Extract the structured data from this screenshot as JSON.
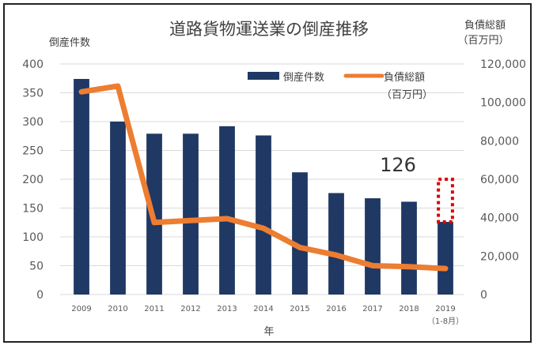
{
  "chart_data": {
    "type": "bar",
    "title": "道路貨物運送業の倒産推移",
    "xlabel": "年",
    "ylabel_left": "倒産件数",
    "ylabel_right": [
      "負債総額",
      "（百万円）"
    ],
    "categories": [
      "2009",
      "2010",
      "2011",
      "2012",
      "2013",
      "2014",
      "2015",
      "2016",
      "2017",
      "2018",
      "2019"
    ],
    "category_sublabels": [
      "",
      "",
      "",
      "",
      "",
      "",
      "",
      "",
      "",
      "",
      "（1-8月）"
    ],
    "ylim_left": [
      0,
      400
    ],
    "yticks_left": [
      "0",
      "50",
      "100",
      "150",
      "200",
      "250",
      "300",
      "350",
      "400"
    ],
    "ylim_right": [
      0,
      120000
    ],
    "yticks_right": [
      "0",
      "20,000",
      "40,000",
      "60,000",
      "80,000",
      "100,000",
      "120,000"
    ],
    "grid": true,
    "legend_position": "top-right",
    "series": [
      {
        "name": "倒産件数",
        "type": "bar",
        "axis": "left",
        "color": "#1f3864",
        "values": [
          374,
          300,
          279,
          279,
          292,
          276,
          212,
          176,
          167,
          161,
          126
        ]
      },
      {
        "name": "負債総額（百万円）",
        "legend_label": [
          "負債総額",
          "（百万円）"
        ],
        "type": "line",
        "axis": "right",
        "color": "#ed7d31",
        "values": [
          105500,
          108500,
          37500,
          38500,
          39500,
          34500,
          24500,
          20500,
          15000,
          14500,
          13500
        ]
      }
    ],
    "annotations": [
      {
        "text": "126",
        "category": "2019"
      },
      {
        "type": "dotted-box",
        "category": "2019",
        "range": [
          126,
          200
        ],
        "color": "#e00000"
      }
    ]
  }
}
